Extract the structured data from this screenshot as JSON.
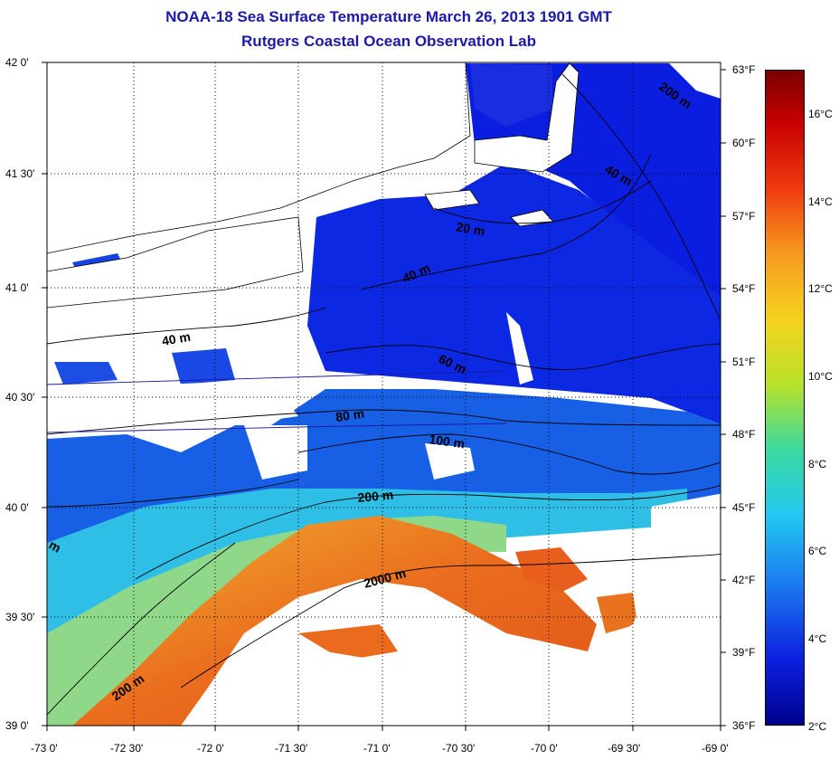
{
  "header": {
    "title": "NOAA-18 Sea Surface Temperature March 26, 2013 1901 GMT",
    "subtitle": "Rutgers Coastal Ocean Observation Lab"
  },
  "axes": {
    "lat_labels": [
      "42 0'",
      "41 30'",
      "41 0'",
      "40 30'",
      "40 0'",
      "39 30'",
      "39 0'"
    ],
    "lon_labels": [
      "-73 0'",
      "-72 30'",
      "-72 0'",
      "-71 30'",
      "-71 0'",
      "-70 30'",
      "-70 0'",
      "-69 30'",
      "-69 0'"
    ],
    "fahrenheit_labels": [
      "63°F",
      "60°F",
      "57°F",
      "54°F",
      "51°F",
      "48°F",
      "45°F",
      "42°F",
      "39°F",
      "36°F"
    ],
    "celsius_labels": [
      "16°C",
      "14°C",
      "12°C",
      "10°C",
      "8°C",
      "6°C",
      "4°C",
      "2°C"
    ]
  },
  "contours": [
    "200 m",
    "40 m",
    "20 m",
    "40 m",
    "40 m",
    "60 m",
    "80 m",
    "100 m",
    "200 m",
    "2000 m",
    "200 m",
    "m"
  ],
  "colors": {
    "title": "#1a1aa6",
    "cold": "#0b1ee0",
    "mid": "#29b6e8",
    "warm": "#e8641c",
    "land": "#ffffff"
  }
}
